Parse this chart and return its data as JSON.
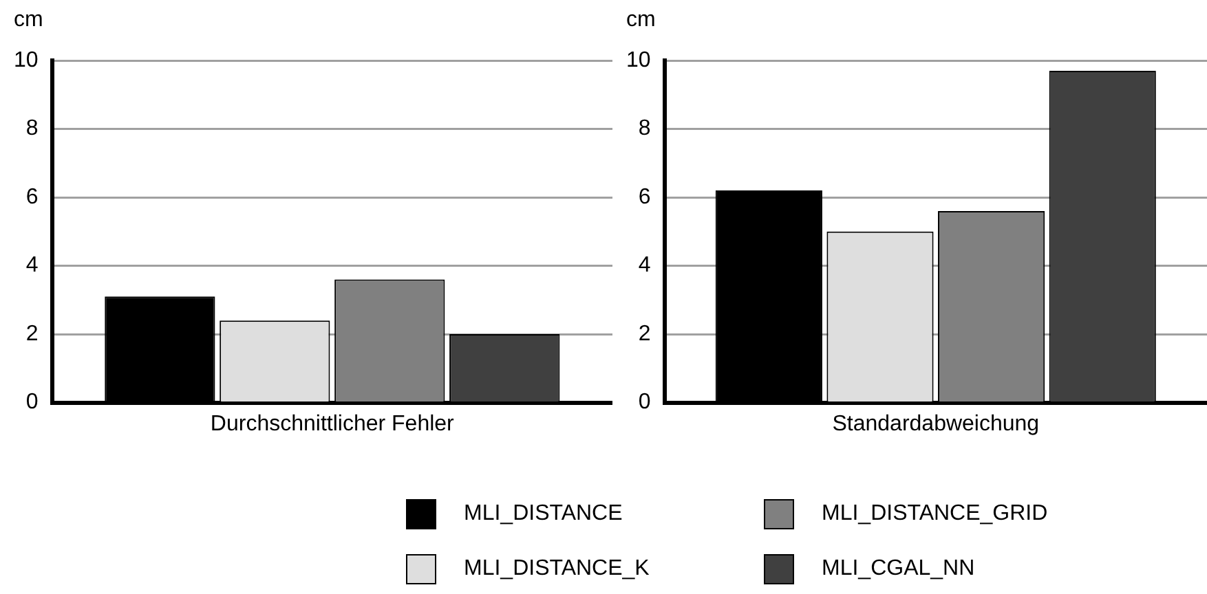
{
  "chart_data": [
    {
      "type": "bar",
      "ylabel": "cm",
      "categories": [
        "Durchschnittlicher Fehler"
      ],
      "ylim": [
        0,
        10
      ],
      "yticks": [
        0,
        2,
        4,
        6,
        8,
        10
      ],
      "grid": "y",
      "legend": "bottom",
      "series": [
        {
          "name": "MLI_DISTANCE",
          "color": "#000000",
          "values": [
            3.1
          ]
        },
        {
          "name": "MLI_DISTANCE_K",
          "color": "#dedede",
          "values": [
            2.4
          ]
        },
        {
          "name": "MLI_DISTANCE_GRID",
          "color": "#808080",
          "values": [
            3.6
          ]
        },
        {
          "name": "MLI_CGAL_NN",
          "color": "#404040",
          "values": [
            2.0
          ]
        }
      ]
    },
    {
      "type": "bar",
      "ylabel": "cm",
      "categories": [
        "Standardabweichung"
      ],
      "ylim": [
        0,
        10
      ],
      "yticks": [
        0,
        2,
        4,
        6,
        8,
        10
      ],
      "grid": "y",
      "legend": "bottom",
      "series": [
        {
          "name": "MLI_DISTANCE",
          "color": "#000000",
          "values": [
            6.2
          ]
        },
        {
          "name": "MLI_DISTANCE_K",
          "color": "#dedede",
          "values": [
            5.0
          ]
        },
        {
          "name": "MLI_DISTANCE_GRID",
          "color": "#808080",
          "values": [
            5.6
          ]
        },
        {
          "name": "MLI_CGAL_NN",
          "color": "#404040",
          "values": [
            9.7
          ]
        }
      ]
    }
  ]
}
